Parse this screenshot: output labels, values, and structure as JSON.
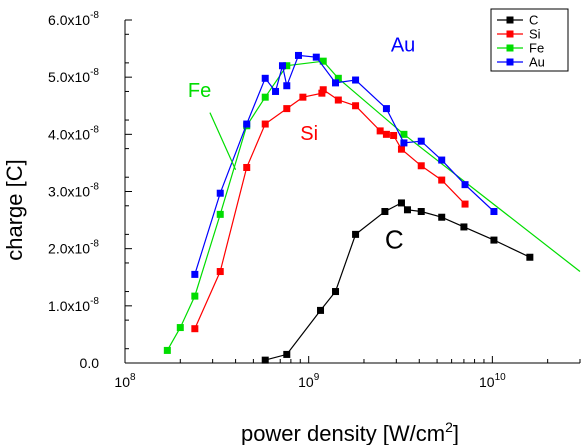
{
  "chart_data": {
    "type": "line",
    "xscale": "log",
    "xlim": [
      100000000.0,
      30000000000.0
    ],
    "ylim": [
      0,
      6e-08
    ],
    "xlabel": "power density [W/cm²]",
    "ylabel": "charge [C]",
    "x_ticks": [
      {
        "value": 100000000.0,
        "base": "10",
        "exp": "8"
      },
      {
        "value": 1000000000.0,
        "base": "10",
        "exp": "9"
      },
      {
        "value": 10000000000.0,
        "base": "10",
        "exp": "10"
      }
    ],
    "y_ticks": [
      {
        "value": 0,
        "mant": "0.0",
        "exp": ""
      },
      {
        "value": 1e-08,
        "mant": "1.0x10",
        "exp": "-8"
      },
      {
        "value": 2e-08,
        "mant": "2.0x10",
        "exp": "-8"
      },
      {
        "value": 3e-08,
        "mant": "3.0x10",
        "exp": "-8"
      },
      {
        "value": 4e-08,
        "mant": "4.0x10",
        "exp": "-8"
      },
      {
        "value": 5e-08,
        "mant": "5.0x10",
        "exp": "-8"
      },
      {
        "value": 6e-08,
        "mant": "6.0x10",
        "exp": "-8"
      }
    ],
    "grid": false,
    "legend_position": "top-right",
    "series": [
      {
        "name": "C",
        "color": "#000000",
        "x": [
          580000000.0,
          760000000.0,
          1160000000.0,
          1400000000.0,
          1800000000.0,
          2600000000.0,
          3200000000.0,
          3450000000.0,
          4100000000.0,
          5300000000.0,
          7000000000.0,
          10200000000.0,
          16000000000.0
        ],
        "y": [
          5e-10,
          1.5e-09,
          9.2e-09,
          1.25e-08,
          2.25e-08,
          2.65e-08,
          2.8e-08,
          2.68e-08,
          2.65e-08,
          2.55e-08,
          2.38e-08,
          2.15e-08,
          1.85e-08
        ]
      },
      {
        "name": "Si",
        "color": "#ff0000",
        "x": [
          240000000.0,
          330000000.0,
          460000000.0,
          580000000.0,
          760000000.0,
          930000000.0,
          1180000000.0,
          1200000000.0,
          1450000000.0,
          1800000000.0,
          2450000000.0,
          2650000000.0,
          2900000000.0,
          3200000000.0,
          4100000000.0,
          5300000000.0,
          7100000000.0
        ],
        "y": [
          6e-09,
          1.6e-08,
          3.42e-08,
          4.18e-08,
          4.45e-08,
          4.65e-08,
          4.72e-08,
          4.78e-08,
          4.6e-08,
          4.5e-08,
          4.06e-08,
          4e-08,
          3.98e-08,
          3.74e-08,
          3.45e-08,
          3.2e-08,
          2.78e-08
        ]
      },
      {
        "name": "Fe",
        "color": "#00dd00",
        "x": [
          170000000.0,
          200000000.0,
          240000000.0,
          330000000.0,
          460000000.0,
          580000000.0,
          760000000.0,
          1200000000.0,
          1450000000.0,
          3300000000.0,
          30000000000.0
        ],
        "y": [
          2.2e-09,
          6.2e-09,
          1.17e-08,
          2.6e-08,
          4.15e-08,
          4.65e-08,
          5.2e-08,
          5.28e-08,
          4.98e-08,
          4e-08,
          1.6e-08
        ]
      },
      {
        "name": "Au",
        "color": "#0000ff",
        "x": [
          240000000.0,
          330000000.0,
          460000000.0,
          580000000.0,
          660000000.0,
          720000000.0,
          760000000.0,
          880000000.0,
          1100000000.0,
          1400000000.0,
          1800000000.0,
          2650000000.0,
          3300000000.0,
          4100000000.0,
          5300000000.0,
          7100000000.0,
          10200000000.0
        ],
        "y": [
          1.55e-08,
          2.97e-08,
          4.18e-08,
          4.98e-08,
          4.75e-08,
          5.2e-08,
          4.85e-08,
          5.38e-08,
          5.35e-08,
          4.9e-08,
          4.95e-08,
          4.45e-08,
          3.85e-08,
          3.88e-08,
          3.55e-08,
          3.12e-08,
          2.65e-08
        ]
      }
    ],
    "annotations": [
      {
        "text": "Au",
        "color": "#0000ff",
        "x": 2800000000.0,
        "y": 5.45e-08,
        "size": 20
      },
      {
        "text": "Fe",
        "color": "#00dd00",
        "x": 220000000.0,
        "y": 4.65e-08,
        "size": 20
      },
      {
        "text": "Si",
        "color": "#ff0000",
        "x": 900000000.0,
        "y": 3.9e-08,
        "size": 20
      },
      {
        "text": "C",
        "color": "#000000",
        "x": 2600000000.0,
        "y": 2e-08,
        "size": 26
      }
    ],
    "fe_pointer": {
      "from": [
        290000000.0,
        4.38e-08
      ],
      "to": [
        400000000.0,
        3.38e-08
      ]
    }
  }
}
